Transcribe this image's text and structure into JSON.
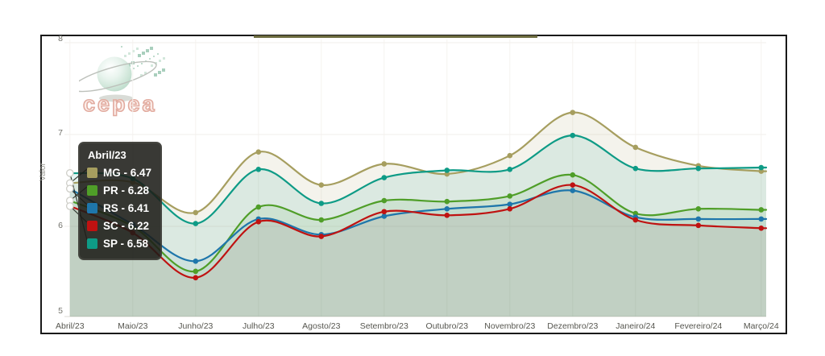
{
  "page": {
    "background": "#ffffff",
    "frame_border_color": "#191919",
    "frame_accent_color": "#6c6b3e"
  },
  "logo": {
    "text": "cepea",
    "sphere_color": "#cde5d7",
    "text_color": "#e2ab9f"
  },
  "axis": {
    "y_tick_labels": [
      "8",
      "7",
      "6",
      "5"
    ]
  },
  "chart_data": {
    "type": "area",
    "title": "",
    "xlabel": "",
    "ylabel": "Valor",
    "ylim": [
      5,
      8
    ],
    "y_ticks": [
      5,
      6,
      7,
      8
    ],
    "grid": true,
    "legend_position": "tooltip",
    "categories": [
      "Abril/23",
      "Maio/23",
      "Junho/23",
      "Julho/23",
      "Agosto/23",
      "Setembro/23",
      "Outubro/23",
      "Novembro/23",
      "Dezembro/23",
      "Janeiro/24",
      "Fevereiro/24",
      "Março/24"
    ],
    "series": [
      {
        "name": "MG",
        "color": "#a69e5f",
        "values": [
          6.47,
          6.48,
          6.15,
          6.81,
          6.45,
          6.68,
          6.57,
          6.77,
          7.24,
          6.86,
          6.66,
          6.6
        ]
      },
      {
        "name": "PR",
        "color": "#4f9e28",
        "values": [
          6.28,
          6.0,
          5.51,
          6.21,
          6.07,
          6.28,
          6.27,
          6.33,
          6.56,
          6.14,
          6.19,
          6.18
        ]
      },
      {
        "name": "RS",
        "color": "#1e76ab",
        "values": [
          6.41,
          6.02,
          5.62,
          6.08,
          5.91,
          6.11,
          6.19,
          6.24,
          6.39,
          6.1,
          6.08,
          6.08
        ]
      },
      {
        "name": "SC",
        "color": "#bf1211",
        "values": [
          6.22,
          5.93,
          5.44,
          6.05,
          5.89,
          6.16,
          6.12,
          6.19,
          6.45,
          6.07,
          6.01,
          5.98
        ]
      },
      {
        "name": "SP",
        "color": "#0e9b86",
        "values": [
          6.58,
          6.52,
          6.03,
          6.62,
          6.25,
          6.53,
          6.61,
          6.62,
          6.99,
          6.63,
          6.63,
          6.64
        ]
      }
    ],
    "tooltip": {
      "title": "Abril/23",
      "rows": [
        {
          "series": "MG",
          "label": "MG - 6.47",
          "color": "#a69e5f"
        },
        {
          "series": "PR",
          "label": "PR - 6.28",
          "color": "#4f9e28"
        },
        {
          "series": "RS",
          "label": "RS - 6.41",
          "color": "#1e76ab"
        },
        {
          "series": "SC",
          "label": "SC - 6.22",
          "color": "#bf1211"
        },
        {
          "series": "SP",
          "label": "SP - 6.58",
          "color": "#0e9b86"
        }
      ]
    }
  }
}
